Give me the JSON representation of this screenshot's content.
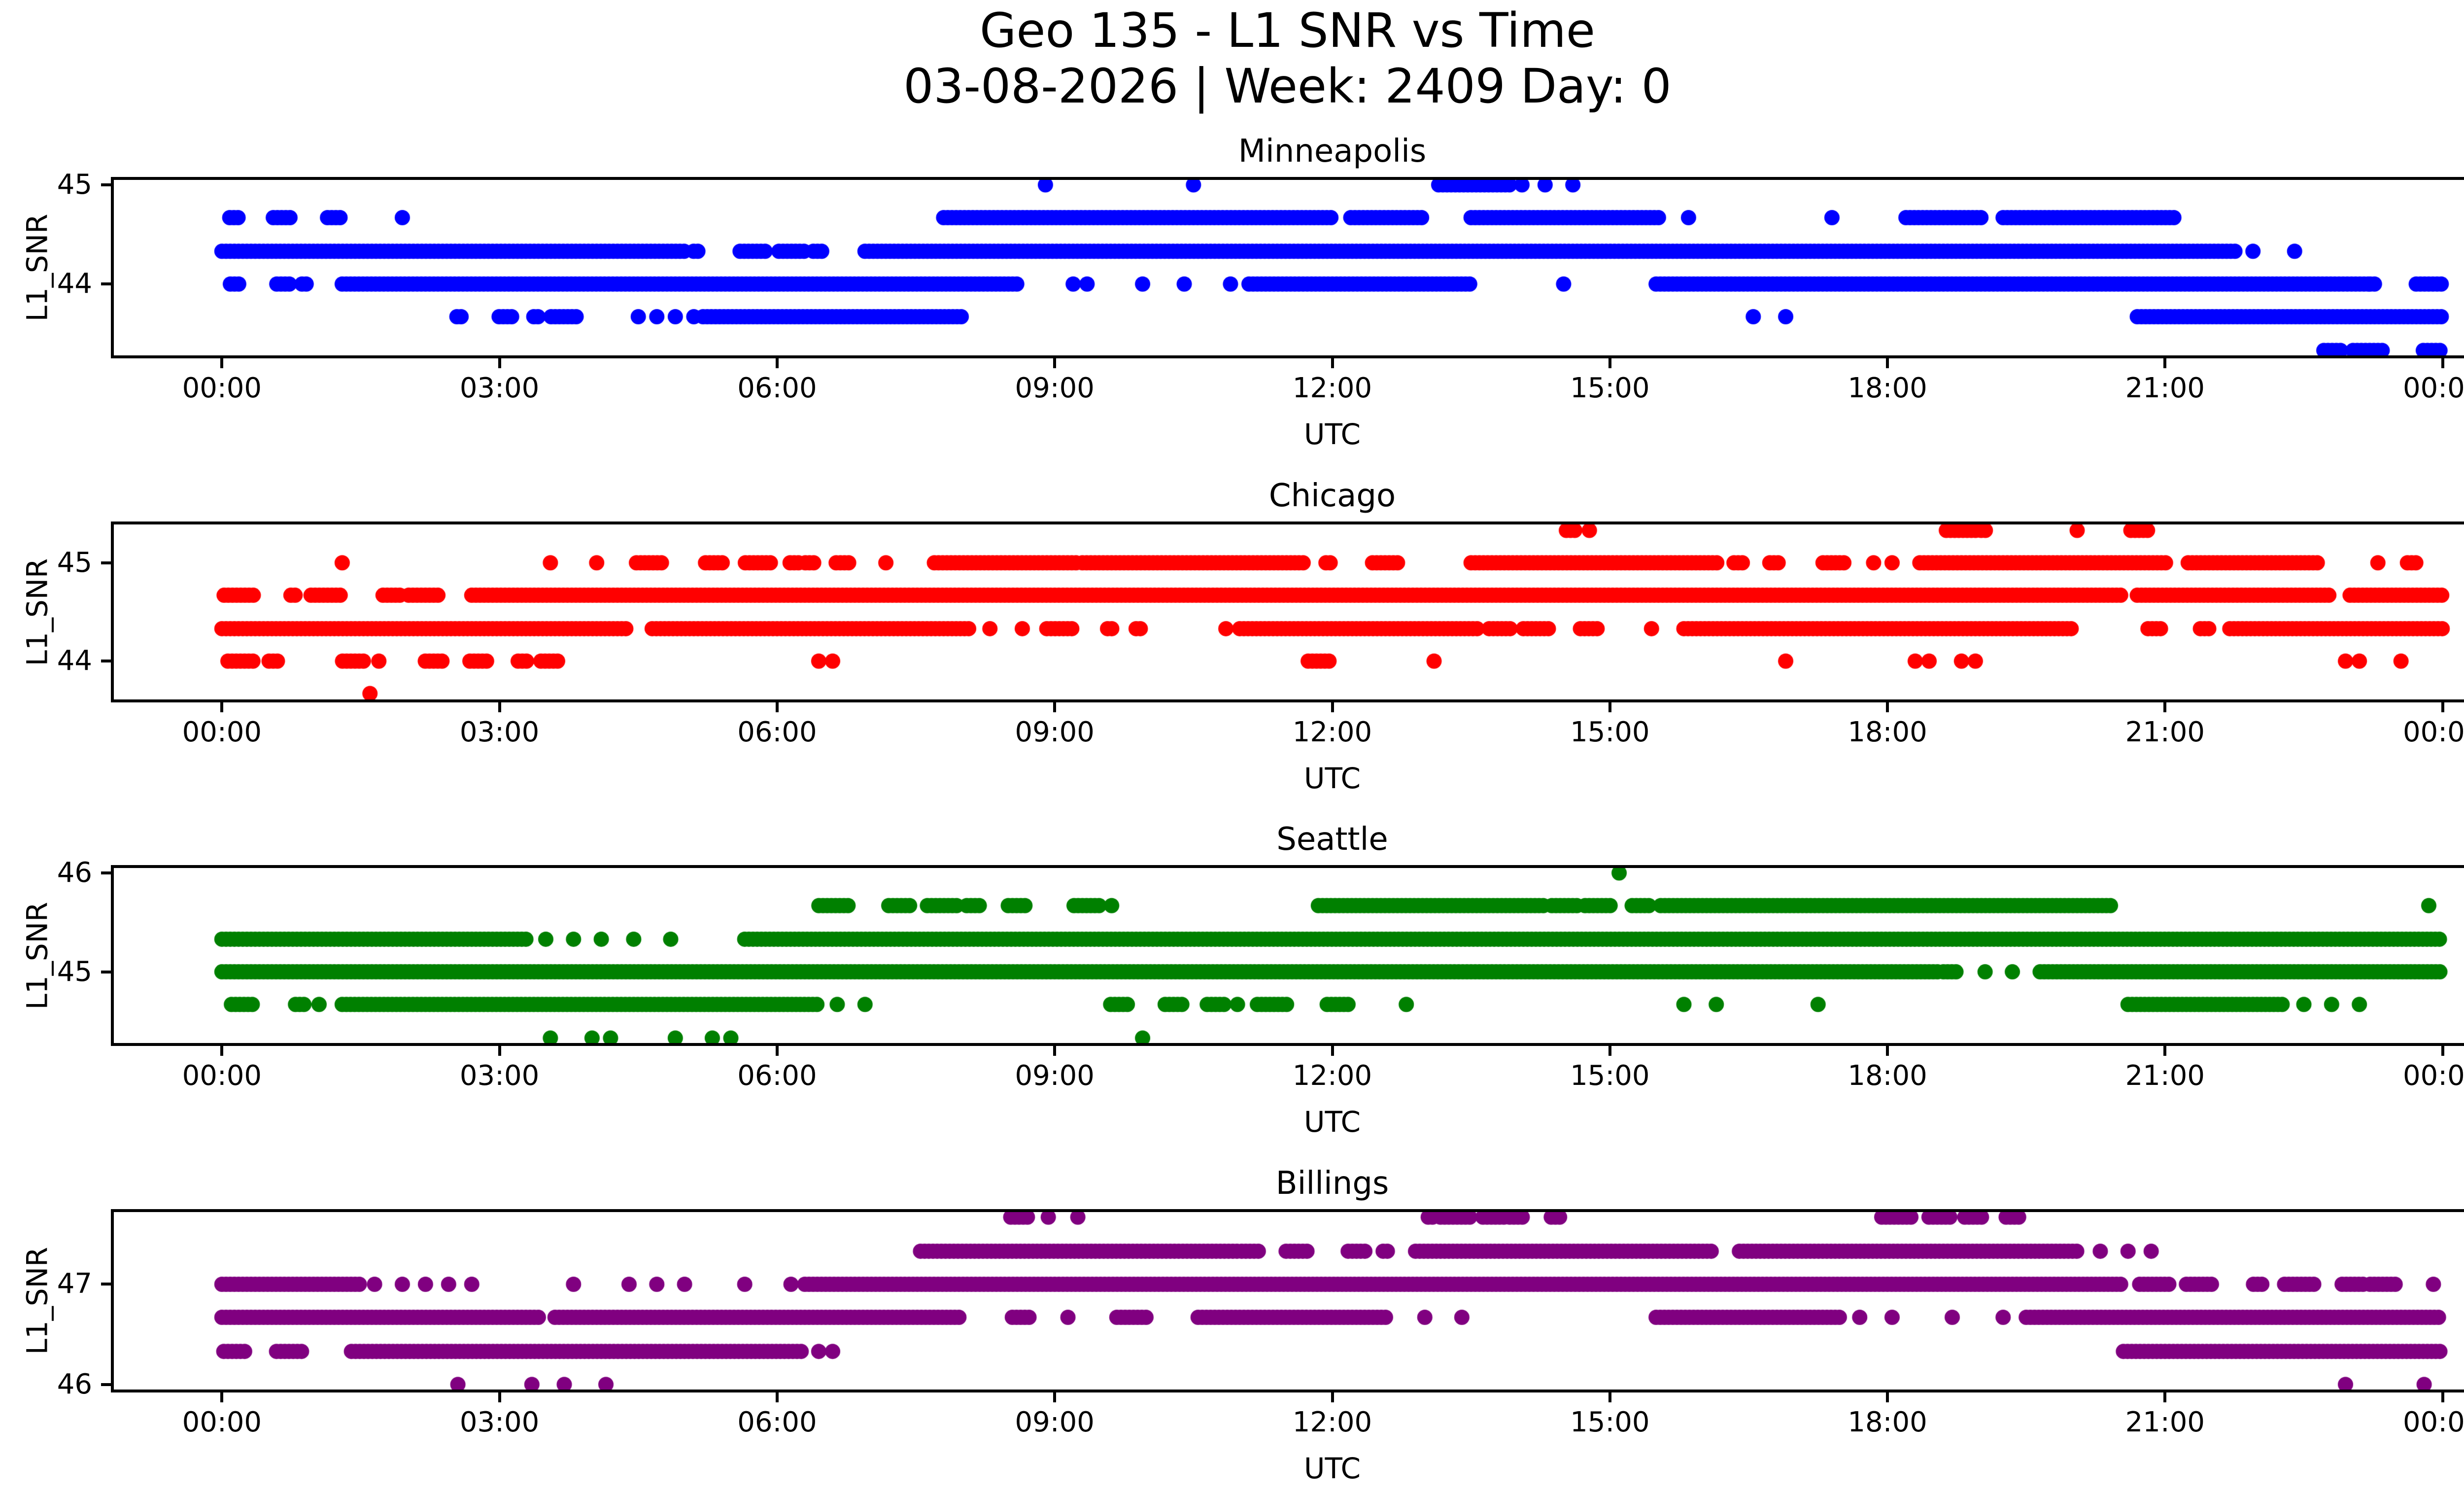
{
  "figure": {
    "title_line1": "Geo 135 - L1 SNR vs Time",
    "title_line2": "03-08-2026 | Week: 2409 Day: 0",
    "background_color": "#ffffff",
    "text_color": "#000000"
  },
  "chart_data": {
    "type": "scatter",
    "xlabel": "UTC",
    "ylabel": "L1_SNR",
    "x_unit": "hours_utc",
    "xlim": [
      -1.2,
      25.2
    ],
    "x_ticks": [
      {
        "value": 0,
        "label": "00:00"
      },
      {
        "value": 3,
        "label": "03:00"
      },
      {
        "value": 6,
        "label": "06:00"
      },
      {
        "value": 9,
        "label": "09:00"
      },
      {
        "value": 12,
        "label": "12:00"
      },
      {
        "value": 15,
        "label": "15:00"
      },
      {
        "value": 18,
        "label": "18:00"
      },
      {
        "value": 21,
        "label": "21:00"
      },
      {
        "value": 24,
        "label": "00:00"
      }
    ],
    "marker": {
      "shape": "circle",
      "radius_px": 15.5
    },
    "grid": false,
    "legend": false,
    "charts": [
      {
        "name": "Minneapolis",
        "color": "#0000ff",
        "ylim": [
          43.25,
          45.08
        ],
        "y_ticks": [
          {
            "value": 45,
            "label": "45"
          },
          {
            "value": 44,
            "label": "44"
          }
        ],
        "bands": [
          {
            "snr": 45.0,
            "dense": [
              [
                13.15,
                13.95
              ]
            ],
            "clusters": [],
            "points": [
              8.9,
              10.5,
              14.05,
              14.3,
              14.6
            ]
          },
          {
            "snr": 44.67,
            "dense": [
              [
                7.8,
                12.0
              ],
              [
                12.2,
                13.0
              ],
              [
                13.5,
                15.55
              ],
              [
                18.2,
                19.05
              ],
              [
                19.25,
                21.1
              ]
            ],
            "clusters": [
              [
                0.08,
                1.55
              ]
            ],
            "points": [
              1.95,
              15.85,
              17.4
            ]
          },
          {
            "snr": 44.33,
            "dense": [
              [
                0.0,
                5.0
              ],
              [
                6.95,
                21.8
              ]
            ],
            "clusters": [
              [
                5.05,
                6.9
              ]
            ],
            "points": [
              21.95,
              22.4
            ]
          },
          {
            "snr": 44.0,
            "dense": [
              [
                1.3,
                8.6
              ],
              [
                11.1,
                13.5
              ],
              [
                15.5,
                23.2
              ]
            ],
            "clusters": [
              [
                0.05,
                1.3
              ],
              [
                23.2,
                24.0
              ]
            ],
            "points": [
              9.2,
              9.35,
              9.95,
              10.4,
              10.9,
              14.5
            ]
          },
          {
            "snr": 43.67,
            "dense": [
              [
                5.2,
                8.0
              ],
              [
                20.7,
                24.0
              ]
            ],
            "clusters": [
              [
                2.5,
                4.0
              ]
            ],
            "points": [
              4.5,
              4.7,
              4.9,
              5.1,
              16.55,
              16.9
            ]
          },
          {
            "snr": 43.33,
            "dense": [],
            "clusters": [
              [
                22.7,
                24.0
              ]
            ],
            "points": []
          }
        ]
      },
      {
        "name": "Chicago",
        "color": "#ff0000",
        "ylim": [
          43.58,
          45.42
        ],
        "y_ticks": [
          {
            "value": 45,
            "label": "45"
          },
          {
            "value": 44,
            "label": "44"
          }
        ],
        "bands": [
          {
            "snr": 45.33,
            "dense": [],
            "clusters": [
              [
                14.5,
                14.78
              ],
              [
                18.6,
                19.1
              ],
              [
                20.6,
                20.92
              ]
            ],
            "points": [
              20.05
            ]
          },
          {
            "snr": 45.0,
            "dense": [
              [
                7.7,
                9.25
              ],
              [
                9.3,
                11.7
              ],
              [
                13.5,
                16.2
              ],
              [
                18.35,
                21.05
              ],
              [
                21.25,
                22.65
              ]
            ],
            "clusters": [
              [
                4.45,
                7.2
              ],
              [
                11.9,
                12.95
              ],
              [
                16.3,
                17.6
              ],
              [
                23.6,
                24.0
              ]
            ],
            "points": [
              1.3,
              3.55,
              4.05,
              17.85,
              18.05,
              23.3
            ]
          },
          {
            "snr": 44.67,
            "dense": [
              [
                2.7,
                20.55
              ],
              [
                20.7,
                22.8
              ],
              [
                23.0,
                24.0
              ]
            ],
            "clusters": [
              [
                0.0,
                2.55
              ]
            ],
            "points": []
          },
          {
            "snr": 44.33,
            "dense": [
              [
                0.0,
                4.4
              ],
              [
                4.65,
                8.1
              ],
              [
                11.0,
                13.6
              ],
              [
                15.8,
                20.0
              ],
              [
                21.7,
                24.0
              ]
            ],
            "clusters": [
              [
                8.9,
                10.15
              ],
              [
                13.65,
                14.9
              ],
              [
                20.8,
                21.5
              ]
            ],
            "points": [
              8.3,
              8.65,
              10.85,
              15.45
            ]
          },
          {
            "snr": 44.0,
            "dense": [],
            "clusters": [
              [
                0.05,
                0.95
              ],
              [
                1.3,
                1.7
              ],
              [
                2.15,
                3.3
              ],
              [
                3.4,
                3.75
              ],
              [
                11.7,
                12.35
              ]
            ],
            "points": [
              6.45,
              6.6,
              13.1,
              16.9,
              18.3,
              18.45,
              18.8,
              18.95,
              22.95,
              23.1,
              23.55
            ]
          },
          {
            "snr": 43.67,
            "dense": [],
            "clusters": [],
            "points": [
              1.6
            ]
          }
        ]
      },
      {
        "name": "Seattle",
        "color": "#008000",
        "ylim": [
          44.25,
          46.08
        ],
        "y_ticks": [
          {
            "value": 46,
            "label": "46"
          },
          {
            "value": 45,
            "label": "45"
          }
        ],
        "bands": [
          {
            "snr": 46.0,
            "dense": [],
            "clusters": [],
            "points": [
              15.1
            ]
          },
          {
            "snr": 45.67,
            "dense": [
              [
                11.85,
                14.3
              ],
              [
                15.55,
                20.45
              ]
            ],
            "clusters": [
              [
                6.45,
                8.9
              ],
              [
                9.2,
                9.65
              ],
              [
                14.35,
                15.5
              ]
            ],
            "points": [
              23.85
            ]
          },
          {
            "snr": 45.33,
            "dense": [
              [
                0.0,
                3.3
              ],
              [
                5.65,
                24.0
              ]
            ],
            "clusters": [],
            "points": [
              3.5,
              3.8,
              4.1,
              4.45,
              4.85
            ]
          },
          {
            "snr": 45.0,
            "dense": [
              [
                0.0,
                18.55
              ],
              [
                19.65,
                24.0
              ]
            ],
            "clusters": [
              [
                18.6,
                19.1
              ]
            ],
            "points": [
              19.35
            ]
          },
          {
            "snr": 44.67,
            "dense": [
              [
                1.3,
                6.45
              ],
              [
                20.6,
                22.3
              ]
            ],
            "clusters": [
              [
                0.08,
                0.9
              ],
              [
                9.6,
                10.4
              ],
              [
                10.6,
                11.0
              ],
              [
                11.15,
                11.65
              ],
              [
                11.9,
                12.2
              ]
            ],
            "points": [
              1.05,
              6.65,
              6.95,
              12.8,
              15.8,
              16.15,
              17.25,
              22.5,
              22.8,
              23.1
            ]
          },
          {
            "snr": 44.33,
            "dense": [],
            "clusters": [],
            "points": [
              3.55,
              4.0,
              4.2,
              4.9,
              5.3,
              5.5,
              9.95
            ]
          }
        ]
      },
      {
        "name": "Billings",
        "color": "#800080",
        "ylim": [
          45.92,
          47.75
        ],
        "y_ticks": [
          {
            "value": 47,
            "label": "47"
          },
          {
            "value": 46,
            "label": "46"
          }
        ],
        "bands": [
          {
            "snr": 47.67,
            "dense": [],
            "clusters": [
              [
                8.5,
                8.95
              ],
              [
                13.0,
                14.8
              ],
              [
                17.9,
                19.5
              ]
            ],
            "points": [
              9.25
            ]
          },
          {
            "snr": 47.33,
            "dense": [
              [
                7.55,
                11.0
              ],
              [
                12.9,
                16.1
              ],
              [
                16.4,
                20.05
              ]
            ],
            "clusters": [
              [
                11.0,
                12.6
              ]
            ],
            "points": [
              20.3,
              20.6,
              20.85
            ]
          },
          {
            "snr": 47.0,
            "dense": [
              [
                0.0,
                1.5
              ],
              [
                6.3,
                20.55
              ]
            ],
            "clusters": [
              [
                20.7,
                23.5
              ]
            ],
            "points": [
              1.65,
              1.95,
              2.2,
              2.45,
              2.7,
              3.8,
              4.4,
              4.7,
              5.0,
              5.65,
              6.15,
              23.9
            ]
          },
          {
            "snr": 46.67,
            "dense": [
              [
                0.0,
                3.45
              ],
              [
                3.6,
                8.0
              ],
              [
                10.55,
                12.6
              ],
              [
                15.5,
                17.5
              ],
              [
                19.5,
                24.0
              ]
            ],
            "clusters": [
              [
                8.5,
                9.15
              ],
              [
                9.65,
                10.15
              ]
            ],
            "points": [
              13.0,
              13.4,
              17.7,
              18.05,
              18.7,
              19.25
            ]
          },
          {
            "snr": 46.33,
            "dense": [
              [
                1.4,
                6.3
              ],
              [
                20.55,
                24.0
              ]
            ],
            "clusters": [
              [
                0.0,
                1.1
              ]
            ],
            "points": [
              6.45,
              6.6
            ]
          },
          {
            "snr": 46.0,
            "dense": [],
            "clusters": [],
            "points": [
              2.55,
              3.35,
              3.7,
              4.15,
              22.95,
              23.8
            ]
          }
        ]
      }
    ]
  }
}
